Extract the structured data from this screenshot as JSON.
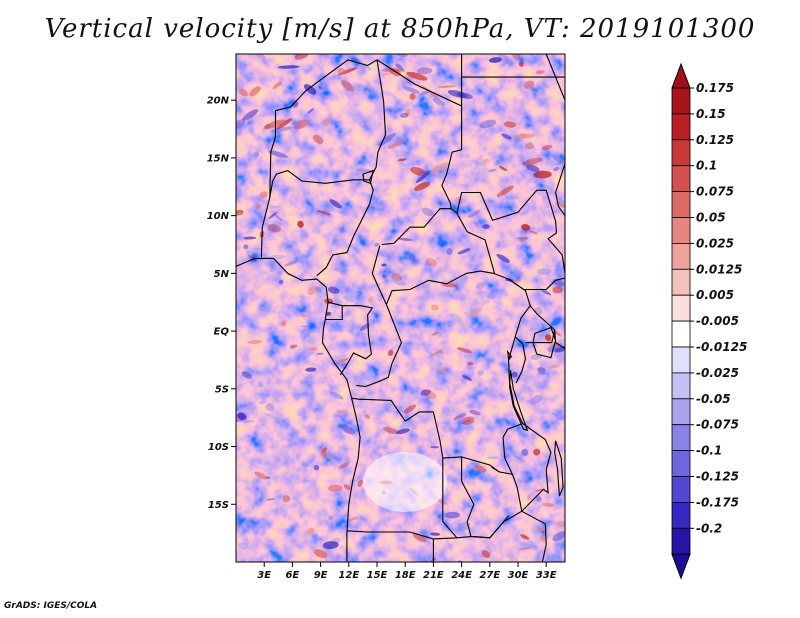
{
  "title": "Vertical velocity [m/s] at 850hPa, VT: 2019101300",
  "footer": "GrADS: IGES/COLA",
  "map": {
    "lon_range": [
      0,
      35
    ],
    "lat_range": [
      -20,
      24
    ],
    "lat_ticks": [
      {
        "value": 20,
        "label": "20N"
      },
      {
        "value": 15,
        "label": "15N"
      },
      {
        "value": 10,
        "label": "10N"
      },
      {
        "value": 5,
        "label": "5N"
      },
      {
        "value": 0,
        "label": "EQ"
      },
      {
        "value": -5,
        "label": "5S"
      },
      {
        "value": -10,
        "label": "10S"
      },
      {
        "value": -15,
        "label": "15S"
      }
    ],
    "lon_ticks": [
      {
        "value": 3,
        "label": "3E"
      },
      {
        "value": 6,
        "label": "6E"
      },
      {
        "value": 9,
        "label": "9E"
      },
      {
        "value": 12,
        "label": "12E"
      },
      {
        "value": 15,
        "label": "15E"
      },
      {
        "value": 18,
        "label": "18E"
      },
      {
        "value": 21,
        "label": "21E"
      },
      {
        "value": 24,
        "label": "24E"
      },
      {
        "value": 27,
        "label": "27E"
      },
      {
        "value": 30,
        "label": "30E"
      },
      {
        "value": 33,
        "label": "33E"
      }
    ]
  },
  "colorbar": {
    "levels": [
      {
        "label": "0.175",
        "color": "#a8141c"
      },
      {
        "label": "0.15",
        "color": "#b82024"
      },
      {
        "label": "0.125",
        "color": "#c83a38"
      },
      {
        "label": "0.1",
        "color": "#d4504c"
      },
      {
        "label": "0.075",
        "color": "#dc6a64"
      },
      {
        "label": "0.05",
        "color": "#e6867e"
      },
      {
        "label": "0.025",
        "color": "#eea49c"
      },
      {
        "label": "0.0125",
        "color": "#f4c2bc"
      },
      {
        "label": "0.005",
        "color": "#fae0dc"
      },
      {
        "label": "-0.005",
        "color": "#ffffff"
      },
      {
        "label": "-0.0125",
        "color": "#e0e0fa"
      },
      {
        "label": "-0.025",
        "color": "#c4c2f4"
      },
      {
        "label": "-0.05",
        "color": "#a8a4ee"
      },
      {
        "label": "-0.075",
        "color": "#8a84e6"
      },
      {
        "label": "-0.1",
        "color": "#6e66dc"
      },
      {
        "label": "-0.125",
        "color": "#5248d0"
      },
      {
        "label": "-0.175",
        "color": "#3628c0"
      },
      {
        "label": "-0.2",
        "color": "#2414a8"
      }
    ],
    "top_color": "#a01018",
    "bottom_color": "#1c0c98"
  }
}
